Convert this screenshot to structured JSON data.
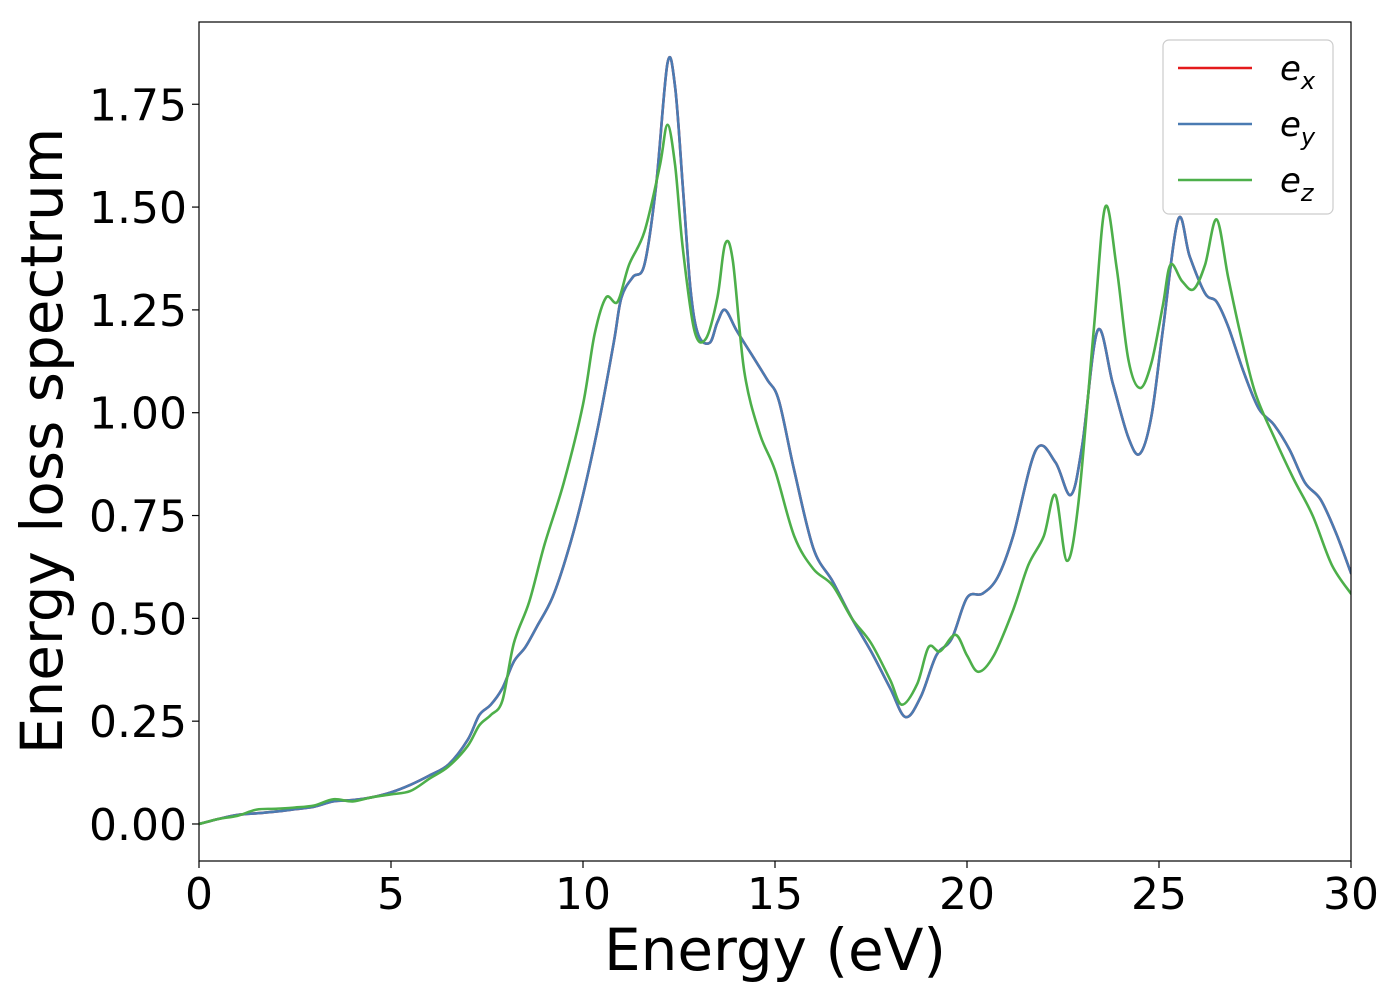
{
  "chart_data": {
    "type": "line",
    "xlabel": "Energy (eV)",
    "ylabel": "Energy loss spectrum",
    "xlim": [
      0,
      30
    ],
    "ylim": [
      -0.09,
      1.95
    ],
    "xticks": [
      0,
      5,
      10,
      15,
      20,
      25,
      30
    ],
    "xtick_labels": [
      "0",
      "5",
      "10",
      "15",
      "20",
      "25",
      "30"
    ],
    "yticks": [
      0.0,
      0.25,
      0.5,
      0.75,
      1.0,
      1.25,
      1.5,
      1.75
    ],
    "ytick_labels": [
      "0.00",
      "0.25",
      "0.50",
      "0.75",
      "1.00",
      "1.25",
      "1.50",
      "1.75"
    ],
    "grid": false,
    "legend_position": "top-right",
    "series": [
      {
        "name": "e_x",
        "label_base": "e",
        "label_sub": "x",
        "color": "#e41a1c",
        "points": [
          [
            0,
            0.0
          ],
          [
            0.5,
            0.012
          ],
          [
            1,
            0.022
          ],
          [
            1.5,
            0.026
          ],
          [
            2,
            0.03
          ],
          [
            2.5,
            0.036
          ],
          [
            3,
            0.042
          ],
          [
            3.5,
            0.055
          ],
          [
            4,
            0.058
          ],
          [
            4.5,
            0.065
          ],
          [
            5,
            0.077
          ],
          [
            5.5,
            0.095
          ],
          [
            6,
            0.118
          ],
          [
            6.5,
            0.145
          ],
          [
            7,
            0.205
          ],
          [
            7.3,
            0.265
          ],
          [
            7.6,
            0.29
          ],
          [
            7.9,
            0.33
          ],
          [
            8.2,
            0.395
          ],
          [
            8.5,
            0.43
          ],
          [
            8.8,
            0.48
          ],
          [
            9.2,
            0.55
          ],
          [
            9.6,
            0.66
          ],
          [
            10,
            0.8
          ],
          [
            10.4,
            0.97
          ],
          [
            10.8,
            1.17
          ],
          [
            11.0,
            1.28
          ],
          [
            11.3,
            1.33
          ],
          [
            11.6,
            1.36
          ],
          [
            11.9,
            1.55
          ],
          [
            12.2,
            1.85
          ],
          [
            12.4,
            1.79
          ],
          [
            12.6,
            1.55
          ],
          [
            12.8,
            1.3
          ],
          [
            13.0,
            1.19
          ],
          [
            13.3,
            1.17
          ],
          [
            13.5,
            1.22
          ],
          [
            13.7,
            1.25
          ],
          [
            14.0,
            1.2
          ],
          [
            14.4,
            1.14
          ],
          [
            14.8,
            1.08
          ],
          [
            15.1,
            1.03
          ],
          [
            15.5,
            0.86
          ],
          [
            16,
            0.67
          ],
          [
            16.5,
            0.59
          ],
          [
            17,
            0.5
          ],
          [
            17.5,
            0.42
          ],
          [
            18.0,
            0.33
          ],
          [
            18.4,
            0.26
          ],
          [
            18.8,
            0.31
          ],
          [
            19.2,
            0.41
          ],
          [
            19.6,
            0.45
          ],
          [
            20.0,
            0.55
          ],
          [
            20.4,
            0.56
          ],
          [
            20.8,
            0.6
          ],
          [
            21.2,
            0.7
          ],
          [
            21.8,
            0.91
          ],
          [
            22.3,
            0.88
          ],
          [
            22.7,
            0.8
          ],
          [
            23.0,
            0.92
          ],
          [
            23.4,
            1.2
          ],
          [
            23.8,
            1.07
          ],
          [
            24.2,
            0.94
          ],
          [
            24.5,
            0.9
          ],
          [
            24.8,
            0.99
          ],
          [
            25.1,
            1.2
          ],
          [
            25.5,
            1.47
          ],
          [
            25.8,
            1.38
          ],
          [
            26.2,
            1.29
          ],
          [
            26.5,
            1.27
          ],
          [
            26.8,
            1.21
          ],
          [
            27.2,
            1.1
          ],
          [
            27.6,
            1.01
          ],
          [
            28.0,
            0.97
          ],
          [
            28.4,
            0.91
          ],
          [
            28.8,
            0.83
          ],
          [
            29.2,
            0.79
          ],
          [
            29.6,
            0.71
          ],
          [
            30,
            0.61
          ]
        ]
      },
      {
        "name": "e_y",
        "label_base": "e",
        "label_sub": "y",
        "color": "#4a7bb2",
        "points": [
          [
            0,
            0.0
          ],
          [
            0.5,
            0.012
          ],
          [
            1,
            0.022
          ],
          [
            1.5,
            0.026
          ],
          [
            2,
            0.03
          ],
          [
            2.5,
            0.036
          ],
          [
            3,
            0.042
          ],
          [
            3.5,
            0.055
          ],
          [
            4,
            0.058
          ],
          [
            4.5,
            0.065
          ],
          [
            5,
            0.077
          ],
          [
            5.5,
            0.095
          ],
          [
            6,
            0.118
          ],
          [
            6.5,
            0.145
          ],
          [
            7,
            0.205
          ],
          [
            7.3,
            0.265
          ],
          [
            7.6,
            0.29
          ],
          [
            7.9,
            0.33
          ],
          [
            8.2,
            0.395
          ],
          [
            8.5,
            0.43
          ],
          [
            8.8,
            0.48
          ],
          [
            9.2,
            0.55
          ],
          [
            9.6,
            0.66
          ],
          [
            10,
            0.8
          ],
          [
            10.4,
            0.97
          ],
          [
            10.8,
            1.17
          ],
          [
            11.0,
            1.28
          ],
          [
            11.3,
            1.33
          ],
          [
            11.6,
            1.36
          ],
          [
            11.9,
            1.55
          ],
          [
            12.2,
            1.85
          ],
          [
            12.4,
            1.79
          ],
          [
            12.6,
            1.55
          ],
          [
            12.8,
            1.3
          ],
          [
            13.0,
            1.19
          ],
          [
            13.3,
            1.17
          ],
          [
            13.5,
            1.22
          ],
          [
            13.7,
            1.25
          ],
          [
            14.0,
            1.2
          ],
          [
            14.4,
            1.14
          ],
          [
            14.8,
            1.08
          ],
          [
            15.1,
            1.03
          ],
          [
            15.5,
            0.86
          ],
          [
            16,
            0.67
          ],
          [
            16.5,
            0.59
          ],
          [
            17,
            0.5
          ],
          [
            17.5,
            0.42
          ],
          [
            18.0,
            0.33
          ],
          [
            18.4,
            0.26
          ],
          [
            18.8,
            0.31
          ],
          [
            19.2,
            0.41
          ],
          [
            19.6,
            0.45
          ],
          [
            20.0,
            0.55
          ],
          [
            20.4,
            0.56
          ],
          [
            20.8,
            0.6
          ],
          [
            21.2,
            0.7
          ],
          [
            21.8,
            0.91
          ],
          [
            22.3,
            0.88
          ],
          [
            22.7,
            0.8
          ],
          [
            23.0,
            0.92
          ],
          [
            23.4,
            1.2
          ],
          [
            23.8,
            1.07
          ],
          [
            24.2,
            0.94
          ],
          [
            24.5,
            0.9
          ],
          [
            24.8,
            0.99
          ],
          [
            25.1,
            1.2
          ],
          [
            25.5,
            1.47
          ],
          [
            25.8,
            1.38
          ],
          [
            26.2,
            1.29
          ],
          [
            26.5,
            1.27
          ],
          [
            26.8,
            1.21
          ],
          [
            27.2,
            1.1
          ],
          [
            27.6,
            1.01
          ],
          [
            28.0,
            0.97
          ],
          [
            28.4,
            0.91
          ],
          [
            28.8,
            0.83
          ],
          [
            29.2,
            0.79
          ],
          [
            29.6,
            0.71
          ],
          [
            30,
            0.61
          ]
        ]
      },
      {
        "name": "e_z",
        "label_base": "e",
        "label_sub": "z",
        "color": "#4daf4a",
        "points": [
          [
            0,
            0.0
          ],
          [
            0.5,
            0.012
          ],
          [
            1,
            0.02
          ],
          [
            1.5,
            0.035
          ],
          [
            2,
            0.037
          ],
          [
            2.5,
            0.04
          ],
          [
            3,
            0.045
          ],
          [
            3.5,
            0.06
          ],
          [
            4,
            0.055
          ],
          [
            4.5,
            0.065
          ],
          [
            5,
            0.072
          ],
          [
            5.5,
            0.08
          ],
          [
            6,
            0.11
          ],
          [
            6.5,
            0.14
          ],
          [
            7,
            0.19
          ],
          [
            7.3,
            0.24
          ],
          [
            7.6,
            0.265
          ],
          [
            7.9,
            0.3
          ],
          [
            8.2,
            0.44
          ],
          [
            8.6,
            0.54
          ],
          [
            9.0,
            0.68
          ],
          [
            9.5,
            0.83
          ],
          [
            10.0,
            1.02
          ],
          [
            10.3,
            1.19
          ],
          [
            10.6,
            1.28
          ],
          [
            10.9,
            1.27
          ],
          [
            11.2,
            1.36
          ],
          [
            11.6,
            1.44
          ],
          [
            12.0,
            1.6
          ],
          [
            12.2,
            1.7
          ],
          [
            12.4,
            1.6
          ],
          [
            12.6,
            1.4
          ],
          [
            12.9,
            1.2
          ],
          [
            13.2,
            1.18
          ],
          [
            13.5,
            1.28
          ],
          [
            13.7,
            1.41
          ],
          [
            13.9,
            1.37
          ],
          [
            14.2,
            1.1
          ],
          [
            14.6,
            0.95
          ],
          [
            15.0,
            0.86
          ],
          [
            15.5,
            0.7
          ],
          [
            16.0,
            0.62
          ],
          [
            16.5,
            0.58
          ],
          [
            17,
            0.5
          ],
          [
            17.5,
            0.44
          ],
          [
            18.0,
            0.35
          ],
          [
            18.3,
            0.29
          ],
          [
            18.7,
            0.34
          ],
          [
            19.0,
            0.43
          ],
          [
            19.3,
            0.42
          ],
          [
            19.7,
            0.46
          ],
          [
            20.0,
            0.41
          ],
          [
            20.3,
            0.37
          ],
          [
            20.7,
            0.41
          ],
          [
            21.2,
            0.52
          ],
          [
            21.6,
            0.63
          ],
          [
            22.0,
            0.7
          ],
          [
            22.3,
            0.8
          ],
          [
            22.6,
            0.64
          ],
          [
            22.9,
            0.78
          ],
          [
            23.3,
            1.2
          ],
          [
            23.6,
            1.5
          ],
          [
            23.9,
            1.35
          ],
          [
            24.2,
            1.13
          ],
          [
            24.5,
            1.06
          ],
          [
            24.8,
            1.12
          ],
          [
            25.1,
            1.26
          ],
          [
            25.3,
            1.36
          ],
          [
            25.6,
            1.32
          ],
          [
            25.9,
            1.3
          ],
          [
            26.2,
            1.36
          ],
          [
            26.5,
            1.47
          ],
          [
            26.8,
            1.33
          ],
          [
            27.1,
            1.2
          ],
          [
            27.5,
            1.05
          ],
          [
            28.0,
            0.94
          ],
          [
            28.5,
            0.84
          ],
          [
            29.0,
            0.75
          ],
          [
            29.5,
            0.63
          ],
          [
            30,
            0.56
          ]
        ]
      }
    ]
  }
}
